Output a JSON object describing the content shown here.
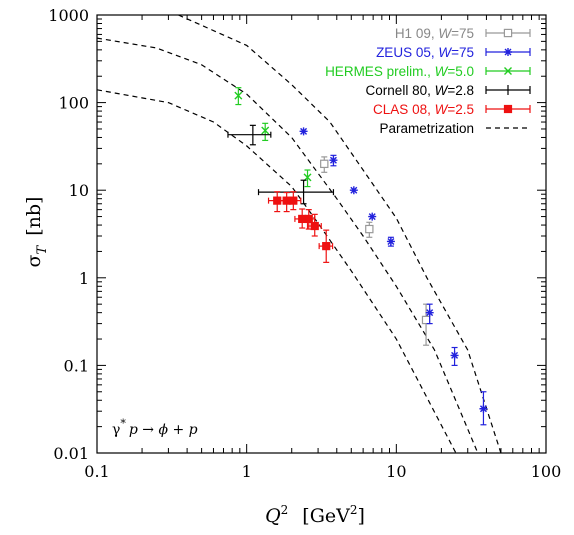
{
  "chart_data": {
    "type": "scatter",
    "x_scale": "log",
    "y_scale": "log",
    "xlim": [
      0.1,
      100
    ],
    "ylim": [
      0.01,
      1000
    ],
    "x_ticks": [
      "0.1",
      "1",
      "10",
      "100"
    ],
    "y_ticks": [
      "0.01",
      "0.1",
      "1",
      "10",
      "100",
      "1000"
    ],
    "xlabel": {
      "var": "Q",
      "sup": "2",
      "unit": "[GeV",
      "unit_sup": "2",
      "unit_close": "]"
    },
    "ylabel": {
      "var": "σ",
      "sub": "T",
      "unit": "[nb]"
    },
    "annotation": {
      "gamma": "γ",
      "star": "*",
      "text": "p → ϕ + p"
    },
    "legend_position": "top-right",
    "series": [
      {
        "name": "H1 09, W=75",
        "legend": {
          "pre": "H1 09, ",
          "w": "W",
          "post": "=75"
        },
        "color": "#999999",
        "marker": "open-square",
        "points": [
          {
            "x": 3.3,
            "y": 20,
            "y_lo": 16,
            "y_hi": 24
          },
          {
            "x": 6.6,
            "y": 3.6,
            "y_lo": 2.9,
            "y_hi": 4.3
          },
          {
            "x": 15.8,
            "y": 0.33,
            "y_lo": 0.17,
            "y_hi": 0.5
          }
        ]
      },
      {
        "name": "ZEUS 05, W=75",
        "legend": {
          "pre": "ZEUS 05, ",
          "w": "W",
          "post": "=75"
        },
        "color": "#2222dd",
        "marker": "asterisk",
        "points": [
          {
            "x": 2.4,
            "y": 47
          },
          {
            "x": 3.8,
            "y": 22,
            "y_lo": 19,
            "y_hi": 25
          },
          {
            "x": 5.2,
            "y": 10
          },
          {
            "x": 6.9,
            "y": 5.0
          },
          {
            "x": 9.2,
            "y": 2.6,
            "y_lo": 2.3,
            "y_hi": 2.9
          },
          {
            "x": 16.7,
            "y": 0.4,
            "y_lo": 0.3,
            "y_hi": 0.5
          },
          {
            "x": 24.5,
            "y": 0.13,
            "y_lo": 0.1,
            "y_hi": 0.16
          },
          {
            "x": 38.2,
            "y": 0.032,
            "y_lo": 0.021,
            "y_hi": 0.05
          }
        ]
      },
      {
        "name": "HERMES prelim., W=5.0",
        "legend": {
          "pre": "HERMES prelim., ",
          "w": "W",
          "post": "=5.0"
        },
        "color": "#22cc22",
        "marker": "cross",
        "points": [
          {
            "x": 0.88,
            "y": 120,
            "y_lo": 95,
            "y_hi": 148
          },
          {
            "x": 1.33,
            "y": 48,
            "y_lo": 37,
            "y_hi": 58
          },
          {
            "x": 2.55,
            "y": 14,
            "y_lo": 11,
            "y_hi": 17
          }
        ]
      },
      {
        "name": "Cornell 80, W=2.8",
        "legend": {
          "pre": "Cornell 80, ",
          "w": "W",
          "post": "=2.8"
        },
        "color": "#000000",
        "marker": "none",
        "points": [
          {
            "x": 1.1,
            "y": 43,
            "x_lo": 0.75,
            "x_hi": 1.45,
            "y_lo": 33,
            "y_hi": 55
          },
          {
            "x": 2.4,
            "y": 9.5,
            "x_lo": 1.2,
            "x_hi": 3.8,
            "y_lo": 7.0,
            "y_hi": 13
          }
        ]
      },
      {
        "name": "CLAS 08, W=2.5",
        "legend": {
          "pre": "CLAS 08, ",
          "w": "W",
          "post": "=2.5"
        },
        "color": "#ee1111",
        "marker": "filled-square",
        "points": [
          {
            "x": 1.6,
            "y": 7.6,
            "x_lo": 1.4,
            "x_hi": 1.8,
            "y_lo": 5.7,
            "y_hi": 9.6
          },
          {
            "x": 1.85,
            "y": 7.6,
            "x_lo": 1.6,
            "x_hi": 2.05,
            "y_lo": 5.7,
            "y_hi": 9.4
          },
          {
            "x": 2.05,
            "y": 7.6,
            "x_lo": 1.85,
            "x_hi": 2.3,
            "y_lo": 6.0,
            "y_hi": 9.6
          },
          {
            "x": 2.35,
            "y": 4.7,
            "x_lo": 2.1,
            "x_hi": 2.6,
            "y_lo": 3.7,
            "y_hi": 6.1
          },
          {
            "x": 2.6,
            "y": 4.7,
            "x_lo": 2.35,
            "x_hi": 2.85,
            "y_lo": 3.6,
            "y_hi": 6.0
          },
          {
            "x": 2.85,
            "y": 3.9,
            "x_lo": 2.55,
            "x_hi": 3.15,
            "y_lo": 3.0,
            "y_hi": 5.3
          },
          {
            "x": 3.4,
            "y": 2.3,
            "x_lo": 3.05,
            "x_hi": 3.75,
            "y_lo": 1.5,
            "y_hi": 3.5
          }
        ]
      },
      {
        "name": "Parametrization",
        "legend": {
          "pre": "Parametrization",
          "w": "",
          "post": ""
        },
        "color": "#000000",
        "marker": "dashed-line",
        "curves": [
          {
            "W": "75",
            "points": [
              [
                0.35,
                1000
              ],
              [
                1,
                450
              ],
              [
                2,
                160
              ],
              [
                3.6,
                60
              ],
              [
                6,
                17
              ],
              [
                10,
                4.8
              ],
              [
                16,
                1.0
              ],
              [
                30,
                0.15
              ],
              [
                50,
                0.01
              ]
            ]
          },
          {
            "W": "5.0",
            "points": [
              [
                0.1,
                545
              ],
              [
                0.25,
                420
              ],
              [
                0.5,
                270
              ],
              [
                1,
                125
              ],
              [
                2,
                40
              ],
              [
                4,
                8
              ],
              [
                6,
                3
              ],
              [
                10,
                0.8
              ],
              [
                18,
                0.15
              ],
              [
                35,
                0.01
              ]
            ]
          },
          {
            "W": "2.5",
            "points": [
              [
                0.1,
                140
              ],
              [
                0.3,
                100
              ],
              [
                0.6,
                60
              ],
              [
                1,
                32
              ],
              [
                2,
                11
              ],
              [
                3,
                4.2
              ],
              [
                5,
                1.2
              ],
              [
                10,
                0.2
              ],
              [
                25,
                0.01
              ]
            ]
          }
        ]
      }
    ]
  }
}
